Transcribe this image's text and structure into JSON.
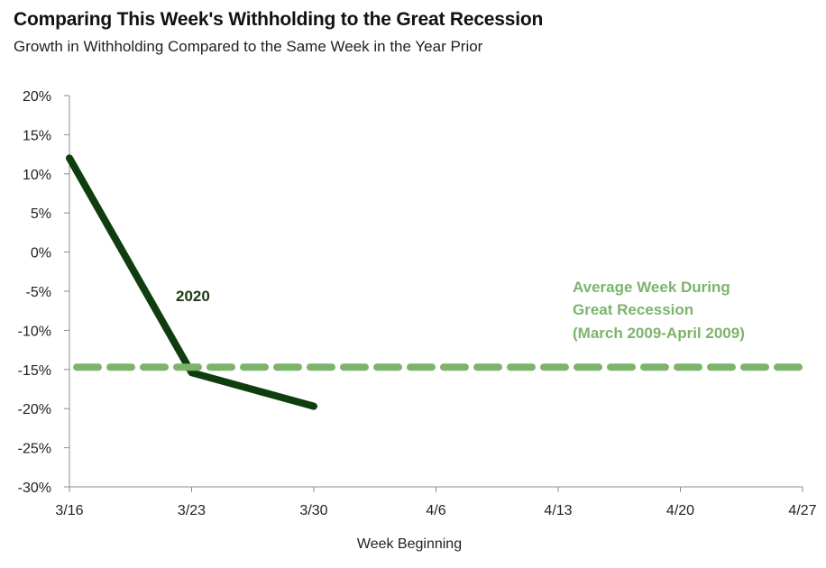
{
  "chart_data": {
    "type": "line",
    "title": "Comparing This Week's Withholding to the Great Recession",
    "subtitle": "Growth in Withholding Compared to the Same Week in the Year Prior",
    "xlabel": "Week Beginning",
    "ylabel": "",
    "categories": [
      "3/16",
      "3/23",
      "3/30",
      "4/6",
      "4/13",
      "4/20",
      "4/27"
    ],
    "yticks": [
      "20%",
      "15%",
      "10%",
      "5%",
      "0%",
      "-5%",
      "-10%",
      "-15%",
      "-20%",
      "-25%",
      "-30%"
    ],
    "ylim": [
      -30,
      20
    ],
    "grid": false,
    "series": [
      {
        "name": "2020",
        "color": "#0f3d0f",
        "style": "solid",
        "x": [
          "3/16",
          "3/23",
          "3/30"
        ],
        "values": [
          12,
          -15.4,
          -19.7
        ]
      },
      {
        "name": "Average Week During Great Recession (March 2009-April 2009)",
        "color": "#7cb46b",
        "style": "dashed",
        "x": [
          "3/16",
          "4/27"
        ],
        "values": [
          -14.7,
          -14.7
        ]
      }
    ],
    "annotations": {
      "line_2020": "2020",
      "recession_lines": [
        "Average Week During",
        "Great Recession",
        "(March 2009-April 2009)"
      ]
    }
  }
}
